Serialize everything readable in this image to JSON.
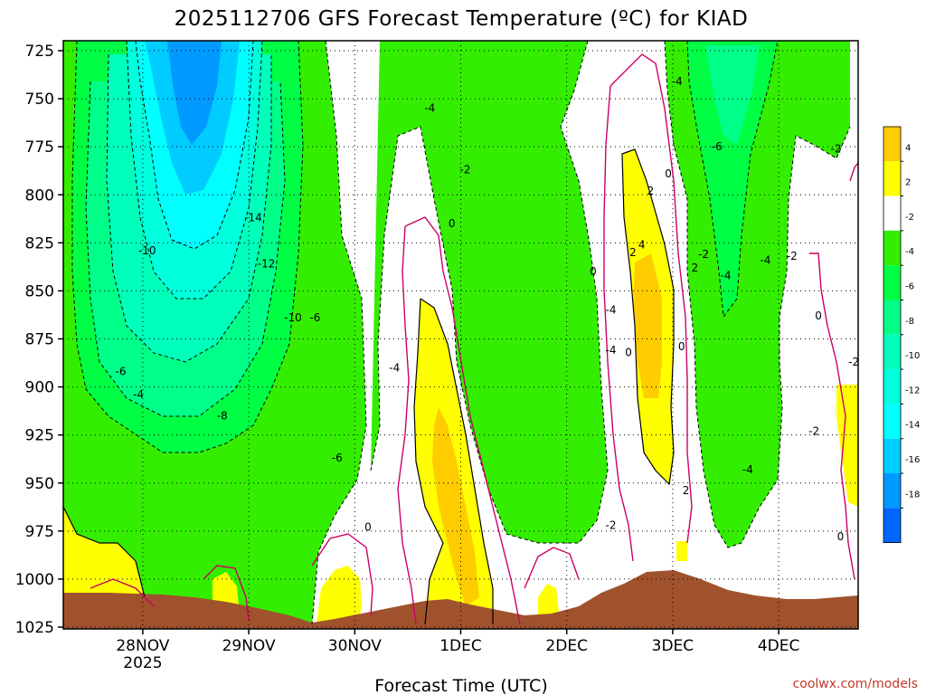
{
  "chart_data": {
    "type": "heatmap",
    "title": "2025112706 GFS Forecast Temperature (ºC) for KIAD",
    "xlabel": "Forecast Time (UTC)",
    "ylabel": "",
    "source": "coolwx.com/models",
    "x_ticks": [
      {
        "label": "28NOV",
        "sublabel": "2025",
        "hours_from_init": 18
      },
      {
        "label": "29NOV",
        "sublabel": "",
        "hours_from_init": 42
      },
      {
        "label": "30NOV",
        "sublabel": "",
        "hours_from_init": 66
      },
      {
        "label": "1DEC",
        "sublabel": "",
        "hours_from_init": 90
      },
      {
        "label": "2DEC",
        "sublabel": "",
        "hours_from_init": 114
      },
      {
        "label": "3DEC",
        "sublabel": "",
        "hours_from_init": 138
      },
      {
        "label": "4DEC",
        "sublabel": "",
        "hours_from_init": 162
      }
    ],
    "x_range_hours": [
      0,
      180
    ],
    "y_ticks": [
      "725",
      "750",
      "775",
      "800",
      "825",
      "850",
      "875",
      "900",
      "925",
      "950",
      "975",
      "1000",
      "1025"
    ],
    "y_range_hpa": [
      1025,
      725
    ],
    "legend_values": [
      "4",
      "2",
      "-2",
      "-4",
      "-6",
      "-8",
      "-10",
      "-12",
      "-14",
      "-16",
      "-18"
    ],
    "colorbar": [
      {
        "range": [
          4,
          6
        ],
        "color": "#ffcc00"
      },
      {
        "range": [
          2,
          4
        ],
        "color": "#ffff00"
      },
      {
        "range": [
          -2,
          2
        ],
        "color": "#ffffff"
      },
      {
        "range": [
          -4,
          -2
        ],
        "color": "#33ee00"
      },
      {
        "range": [
          -6,
          -4
        ],
        "color": "#00ff44"
      },
      {
        "range": [
          -8,
          -6
        ],
        "color": "#00ff88"
      },
      {
        "range": [
          -10,
          -8
        ],
        "color": "#00ffbb"
      },
      {
        "range": [
          -12,
          -10
        ],
        "color": "#00ffdd"
      },
      {
        "range": [
          -14,
          -12
        ],
        "color": "#00ffff"
      },
      {
        "range": [
          -16,
          -14
        ],
        "color": "#00ccff"
      },
      {
        "range": [
          -18,
          -16
        ],
        "color": "#0099ff"
      },
      {
        "range": [
          -20,
          -18
        ],
        "color": "#0066ff"
      }
    ],
    "surface_color": "#a0522d",
    "contour_labels": [
      {
        "text": "-14",
        "t": 43,
        "p": 812
      },
      {
        "text": "-12",
        "t": 46,
        "p": 836
      },
      {
        "text": "-10",
        "t": 19,
        "p": 829
      },
      {
        "text": "-10",
        "t": 52,
        "p": 864
      },
      {
        "text": "-8",
        "t": 36,
        "p": 915
      },
      {
        "text": "-6",
        "t": 13,
        "p": 892
      },
      {
        "text": "-6",
        "t": 57,
        "p": 864
      },
      {
        "text": "-6",
        "t": 62,
        "p": 937
      },
      {
        "text": "-4",
        "t": 17,
        "p": 904
      },
      {
        "text": "-4",
        "t": 75,
        "p": 890
      },
      {
        "text": "-4",
        "t": 83,
        "p": 755
      },
      {
        "text": "-4",
        "t": 124,
        "p": 860
      },
      {
        "text": "-4",
        "t": 124,
        "p": 881
      },
      {
        "text": "-4",
        "t": 150,
        "p": 842
      },
      {
        "text": "-4",
        "t": 155,
        "p": 943
      },
      {
        "text": "-4",
        "t": 159,
        "p": 834
      },
      {
        "text": "-4",
        "t": 139,
        "p": 741
      },
      {
        "text": "-6",
        "t": 148,
        "p": 775
      },
      {
        "text": "-2",
        "t": 91,
        "p": 787
      },
      {
        "text": "-2",
        "t": 124,
        "p": 972
      },
      {
        "text": "-2",
        "t": 145,
        "p": 831
      },
      {
        "text": "-2",
        "t": 165,
        "p": 832
      },
      {
        "text": "-2",
        "t": 175,
        "p": 776
      },
      {
        "text": "-2",
        "t": 170,
        "p": 923
      },
      {
        "text": "-2",
        "t": 179,
        "p": 887
      },
      {
        "text": "0",
        "t": 88,
        "p": 815
      },
      {
        "text": "0",
        "t": 120,
        "p": 840
      },
      {
        "text": "0",
        "t": 128,
        "p": 882
      },
      {
        "text": "0",
        "t": 137,
        "p": 789
      },
      {
        "text": "0",
        "t": 140,
        "p": 879
      },
      {
        "text": "0",
        "t": 171,
        "p": 863
      },
      {
        "text": "0",
        "t": 176,
        "p": 978
      },
      {
        "text": "0",
        "t": 69,
        "p": 973
      },
      {
        "text": "2",
        "t": 133,
        "p": 798
      },
      {
        "text": "2",
        "t": 129,
        "p": 830
      },
      {
        "text": "2",
        "t": 141,
        "p": 954
      },
      {
        "text": "2",
        "t": 143,
        "p": 838
      },
      {
        "text": "4",
        "t": 131,
        "p": 826
      }
    ]
  }
}
